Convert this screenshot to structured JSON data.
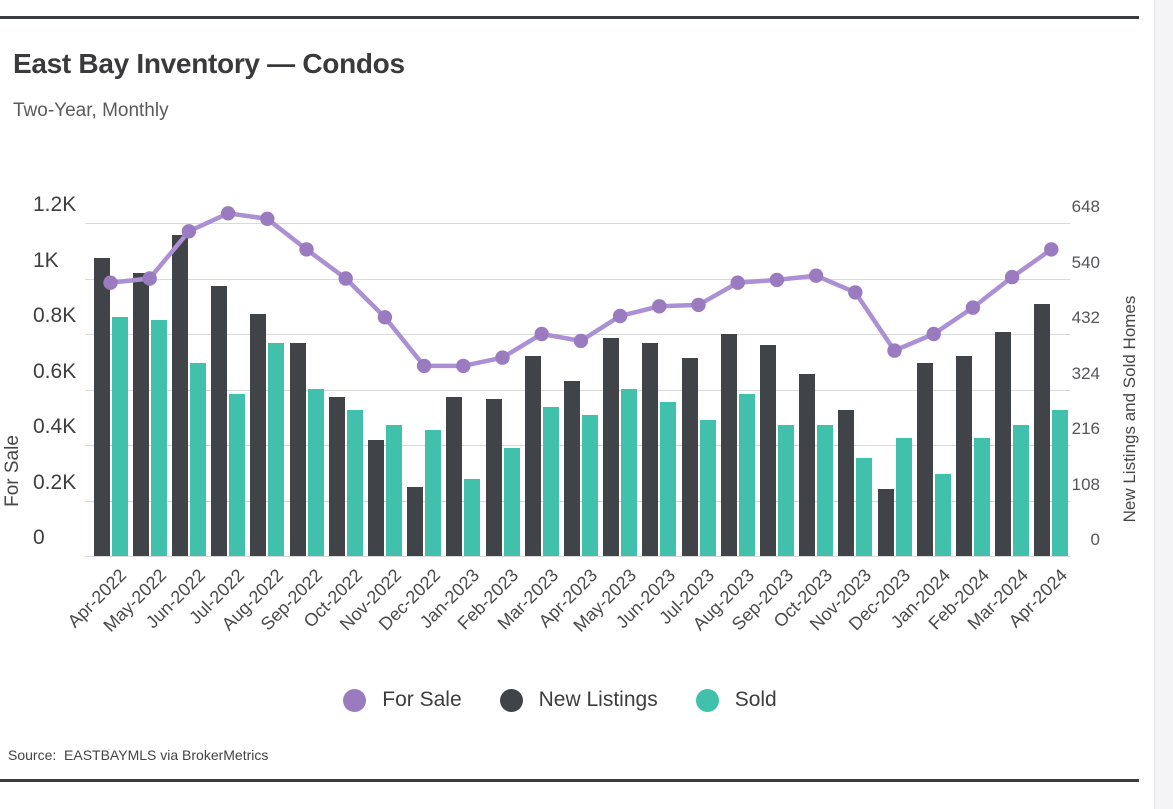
{
  "page": {
    "title": "East Bay Inventory — Condos",
    "subtitle": "Two-Year, Monthly",
    "source": "Source:  EASTBAYMLS via BrokerMetrics"
  },
  "colors": {
    "for_sale_line": "#ab90d3",
    "for_sale_dot": "#9b7bc0",
    "new_listings": "#404347",
    "sold": "#41c0ab",
    "grid": "#d9d9d9"
  },
  "chart_data": {
    "type": "bar",
    "subtype": "combo-bar-line",
    "title": "East Bay Inventory — Condos",
    "subtitle": "Two-Year, Monthly",
    "grid": true,
    "categories": [
      "Apr-2022",
      "May-2022",
      "Jun-2022",
      "Jul-2022",
      "Aug-2022",
      "Sep-2022",
      "Oct-2022",
      "Nov-2022",
      "Dec-2022",
      "Jan-2023",
      "Feb-2023",
      "Mar-2023",
      "Apr-2023",
      "May-2023",
      "Jun-2023",
      "Jul-2023",
      "Aug-2023",
      "Sep-2023",
      "Oct-2023",
      "Nov-2023",
      "Dec-2023",
      "Jan-2024",
      "Feb-2024",
      "Mar-2024",
      "Apr-2024"
    ],
    "series": [
      {
        "name": "For Sale",
        "type": "line",
        "axis": "left",
        "color": "#9b7bc0",
        "values": [
          985,
          1000,
          1170,
          1235,
          1215,
          1105,
          1000,
          860,
          685,
          685,
          715,
          800,
          775,
          865,
          900,
          905,
          985,
          995,
          1010,
          950,
          740,
          800,
          895,
          1005,
          1105
        ]
      },
      {
        "name": "New Listings",
        "type": "bar",
        "axis": "right",
        "color": "#404347",
        "values": [
          580,
          550,
          625,
          525,
          470,
          415,
          310,
          225,
          135,
          310,
          305,
          390,
          340,
          425,
          415,
          385,
          432,
          410,
          355,
          285,
          130,
          375,
          390,
          435,
          490
        ]
      },
      {
        "name": "Sold",
        "type": "bar",
        "axis": "right",
        "color": "#41c0ab",
        "values": [
          465,
          460,
          375,
          315,
          415,
          325,
          285,
          255,
          245,
          150,
          210,
          290,
          275,
          325,
          300,
          265,
          315,
          255,
          255,
          190,
          230,
          160,
          230,
          255,
          285
        ]
      }
    ],
    "left_axis": {
      "label": "For Sale",
      "min": 0,
      "max": 1200,
      "step": 200,
      "tick_labels_top_to_bottom": [
        "1.2K",
        "1K",
        "0.8K",
        "0.6K",
        "0.4K",
        "0.2K",
        "0"
      ]
    },
    "right_axis": {
      "label": "New Listings and Sold Homes",
      "min": 0,
      "max": 648,
      "step": 108,
      "tick_labels_top_to_bottom": [
        "648",
        "540",
        "432",
        "324",
        "216",
        "108",
        "0"
      ]
    },
    "legend": [
      {
        "label": "For Sale",
        "color": "#9b7bc0"
      },
      {
        "label": "New Listings",
        "color": "#404347"
      },
      {
        "label": "Sold",
        "color": "#41c0ab"
      }
    ],
    "legend_position": "bottom-center"
  }
}
